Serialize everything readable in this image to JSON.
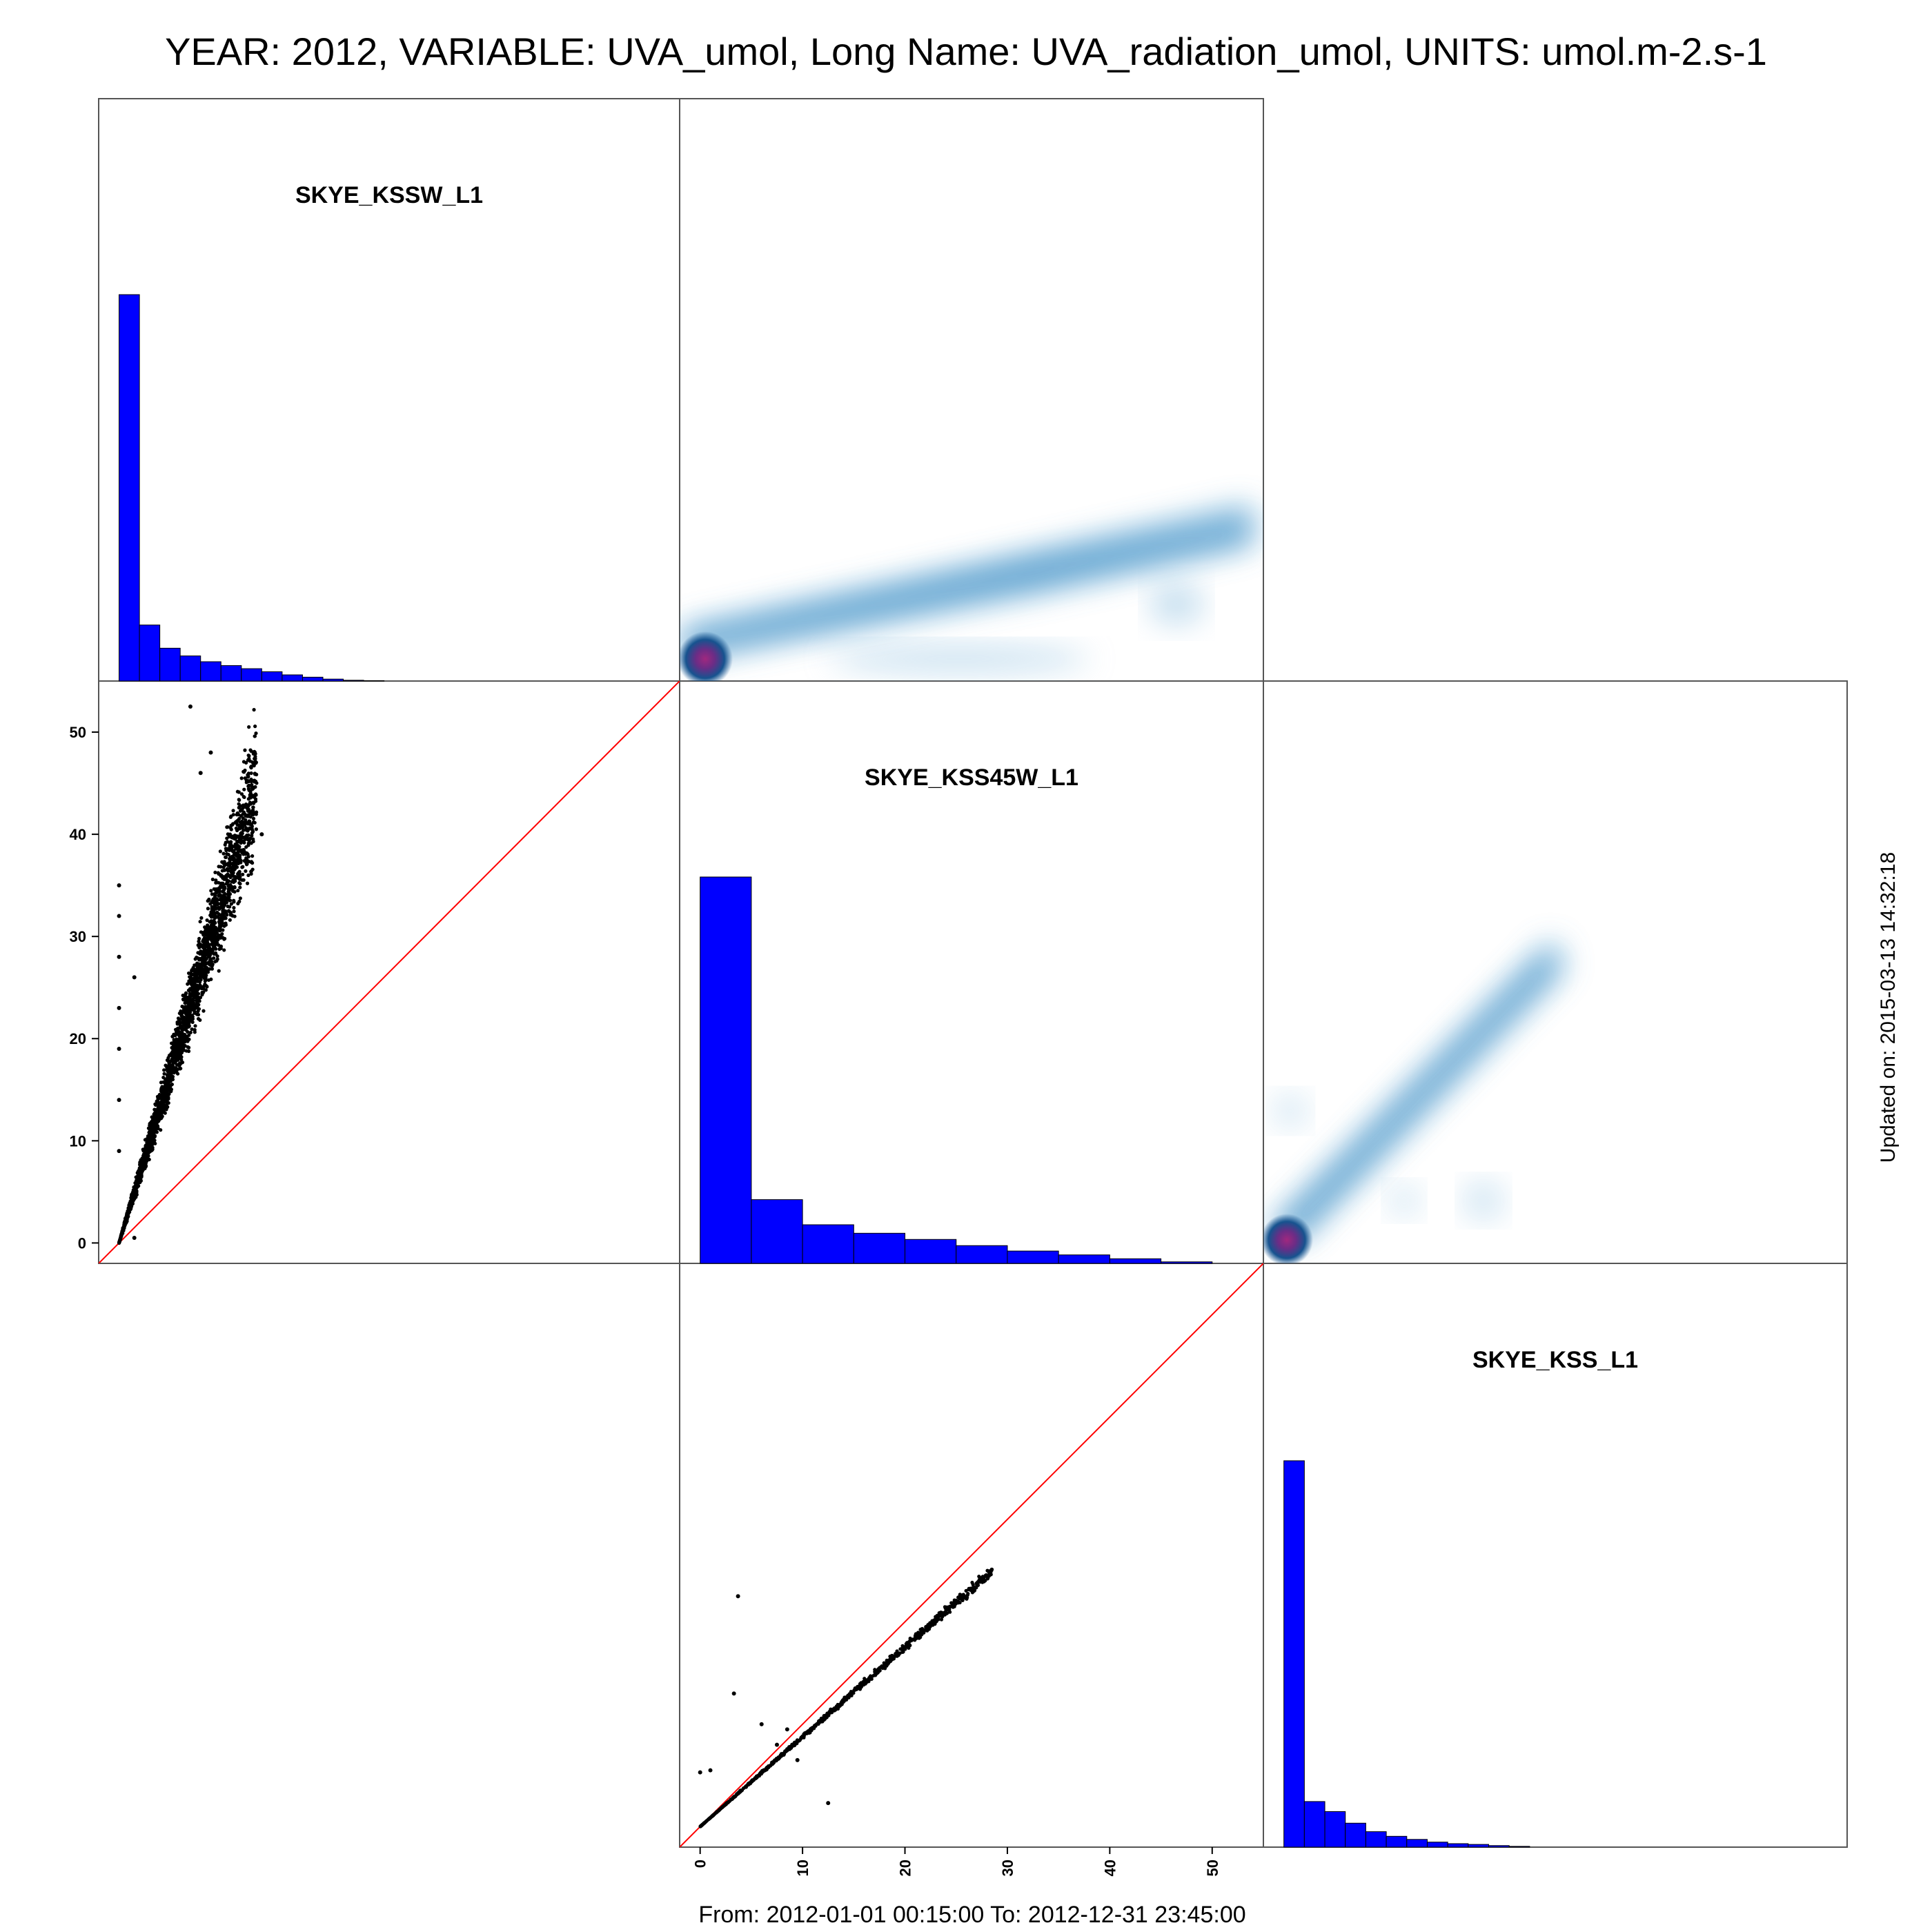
{
  "title": "YEAR: 2012, VARIABLE: UVA_umol, Long Name: UVA_radiation_umol, UNITS: umol.m-2.s-1",
  "footer": "From: 2012-01-01 00:15:00 To: 2012-12-31 23:45:00",
  "updated": "Updated on: 2015-03-13 14:32:18",
  "colors": {
    "hist_fill": "#0000ff",
    "diag_line": "#ff0000",
    "points": "#000000",
    "density": "#3d8fc4",
    "density_core": "#7a2a7a"
  },
  "chart_data": [
    {
      "type": "bar",
      "panel": "row1-col1",
      "title": "SKYE_KSSW_L1",
      "bin_width": 2,
      "x_range": [
        0,
        52
      ],
      "values": [
        1000,
        145,
        85,
        65,
        50,
        40,
        32,
        24,
        16,
        10,
        5,
        2,
        1
      ]
    },
    {
      "type": "bar",
      "panel": "row2-col2",
      "title": "SKYE_KSS45W_L1",
      "bin_width": 5,
      "x_range": [
        0,
        50
      ],
      "values": [
        1000,
        165,
        100,
        78,
        62,
        46,
        32,
        22,
        12,
        4
      ]
    },
    {
      "type": "bar",
      "panel": "row3-col3",
      "title": "SKYE_KSS_L1",
      "bin_width": 2,
      "x_range": [
        0,
        30
      ],
      "values": [
        1000,
        118,
        92,
        62,
        40,
        28,
        20,
        13,
        9,
        7,
        4,
        2
      ]
    },
    {
      "type": "scatter",
      "panel": "row2-col1",
      "x_variable": "SKYE_KSS45W_L1",
      "y_variable": "SKYE_KSSW_L1",
      "yticks": [
        0,
        10,
        20,
        30,
        40,
        50
      ],
      "x_range": [
        -2,
        55
      ],
      "y_range": [
        -2,
        55
      ],
      "reference_line": "y = x",
      "trend": {
        "x": [
          0,
          13.5
        ],
        "y": [
          0,
          45
        ]
      },
      "outliers": [
        {
          "x": 7,
          "y": 52.5
        },
        {
          "x": 8,
          "y": 46
        },
        {
          "x": 9,
          "y": 48
        },
        {
          "x": 0,
          "y": 35
        },
        {
          "x": 0,
          "y": 32
        },
        {
          "x": 0,
          "y": 28
        },
        {
          "x": 0,
          "y": 23
        },
        {
          "x": 0,
          "y": 19
        },
        {
          "x": 0,
          "y": 14
        },
        {
          "x": 0,
          "y": 9
        },
        {
          "x": 1.5,
          "y": 0.5
        },
        {
          "x": 1.5,
          "y": 26
        },
        {
          "x": 14,
          "y": 40
        }
      ]
    },
    {
      "type": "scatter",
      "panel": "row3-col2",
      "x_variable": "SKYE_KSS45W_L1",
      "y_variable": "SKYE_KSS_L1",
      "xticks": [
        0,
        10,
        20,
        30,
        40,
        50
      ],
      "x_range": [
        -2,
        55
      ],
      "y_range": [
        -2,
        55
      ],
      "reference_line": "y = x",
      "trend": {
        "x": [
          0,
          28.5
        ],
        "y": [
          0,
          25
        ]
      },
      "outliers": [
        {
          "x": 3.7,
          "y": 22.5
        },
        {
          "x": 3.3,
          "y": 13
        },
        {
          "x": 0,
          "y": 5.3
        },
        {
          "x": 12.5,
          "y": 2.3
        },
        {
          "x": 6,
          "y": 10
        },
        {
          "x": 9.5,
          "y": 6.5
        },
        {
          "x": 7.5,
          "y": 8
        },
        {
          "x": 1,
          "y": 5.5
        },
        {
          "x": 8.5,
          "y": 9.5
        }
      ]
    },
    {
      "type": "heatmap",
      "panel": "row1-col2",
      "description_style": "2d density",
      "x_variable": "SKYE_KSSW_L1",
      "y_variable": "SKYE_KSS45W_L1",
      "peak": {
        "x": 0,
        "y": 0
      },
      "ridge": {
        "x": [
          0,
          52
        ],
        "y": [
          0,
          15
        ]
      }
    },
    {
      "type": "heatmap",
      "panel": "row2-col3",
      "description_style": "2d density",
      "x_variable": "SKYE_KSS_L1",
      "y_variable": "SKYE_KSS45W_L1",
      "peak": {
        "x": 0,
        "y": 0
      },
      "ridge": {
        "x": [
          0,
          28
        ],
        "y": [
          0,
          30
        ]
      }
    }
  ]
}
